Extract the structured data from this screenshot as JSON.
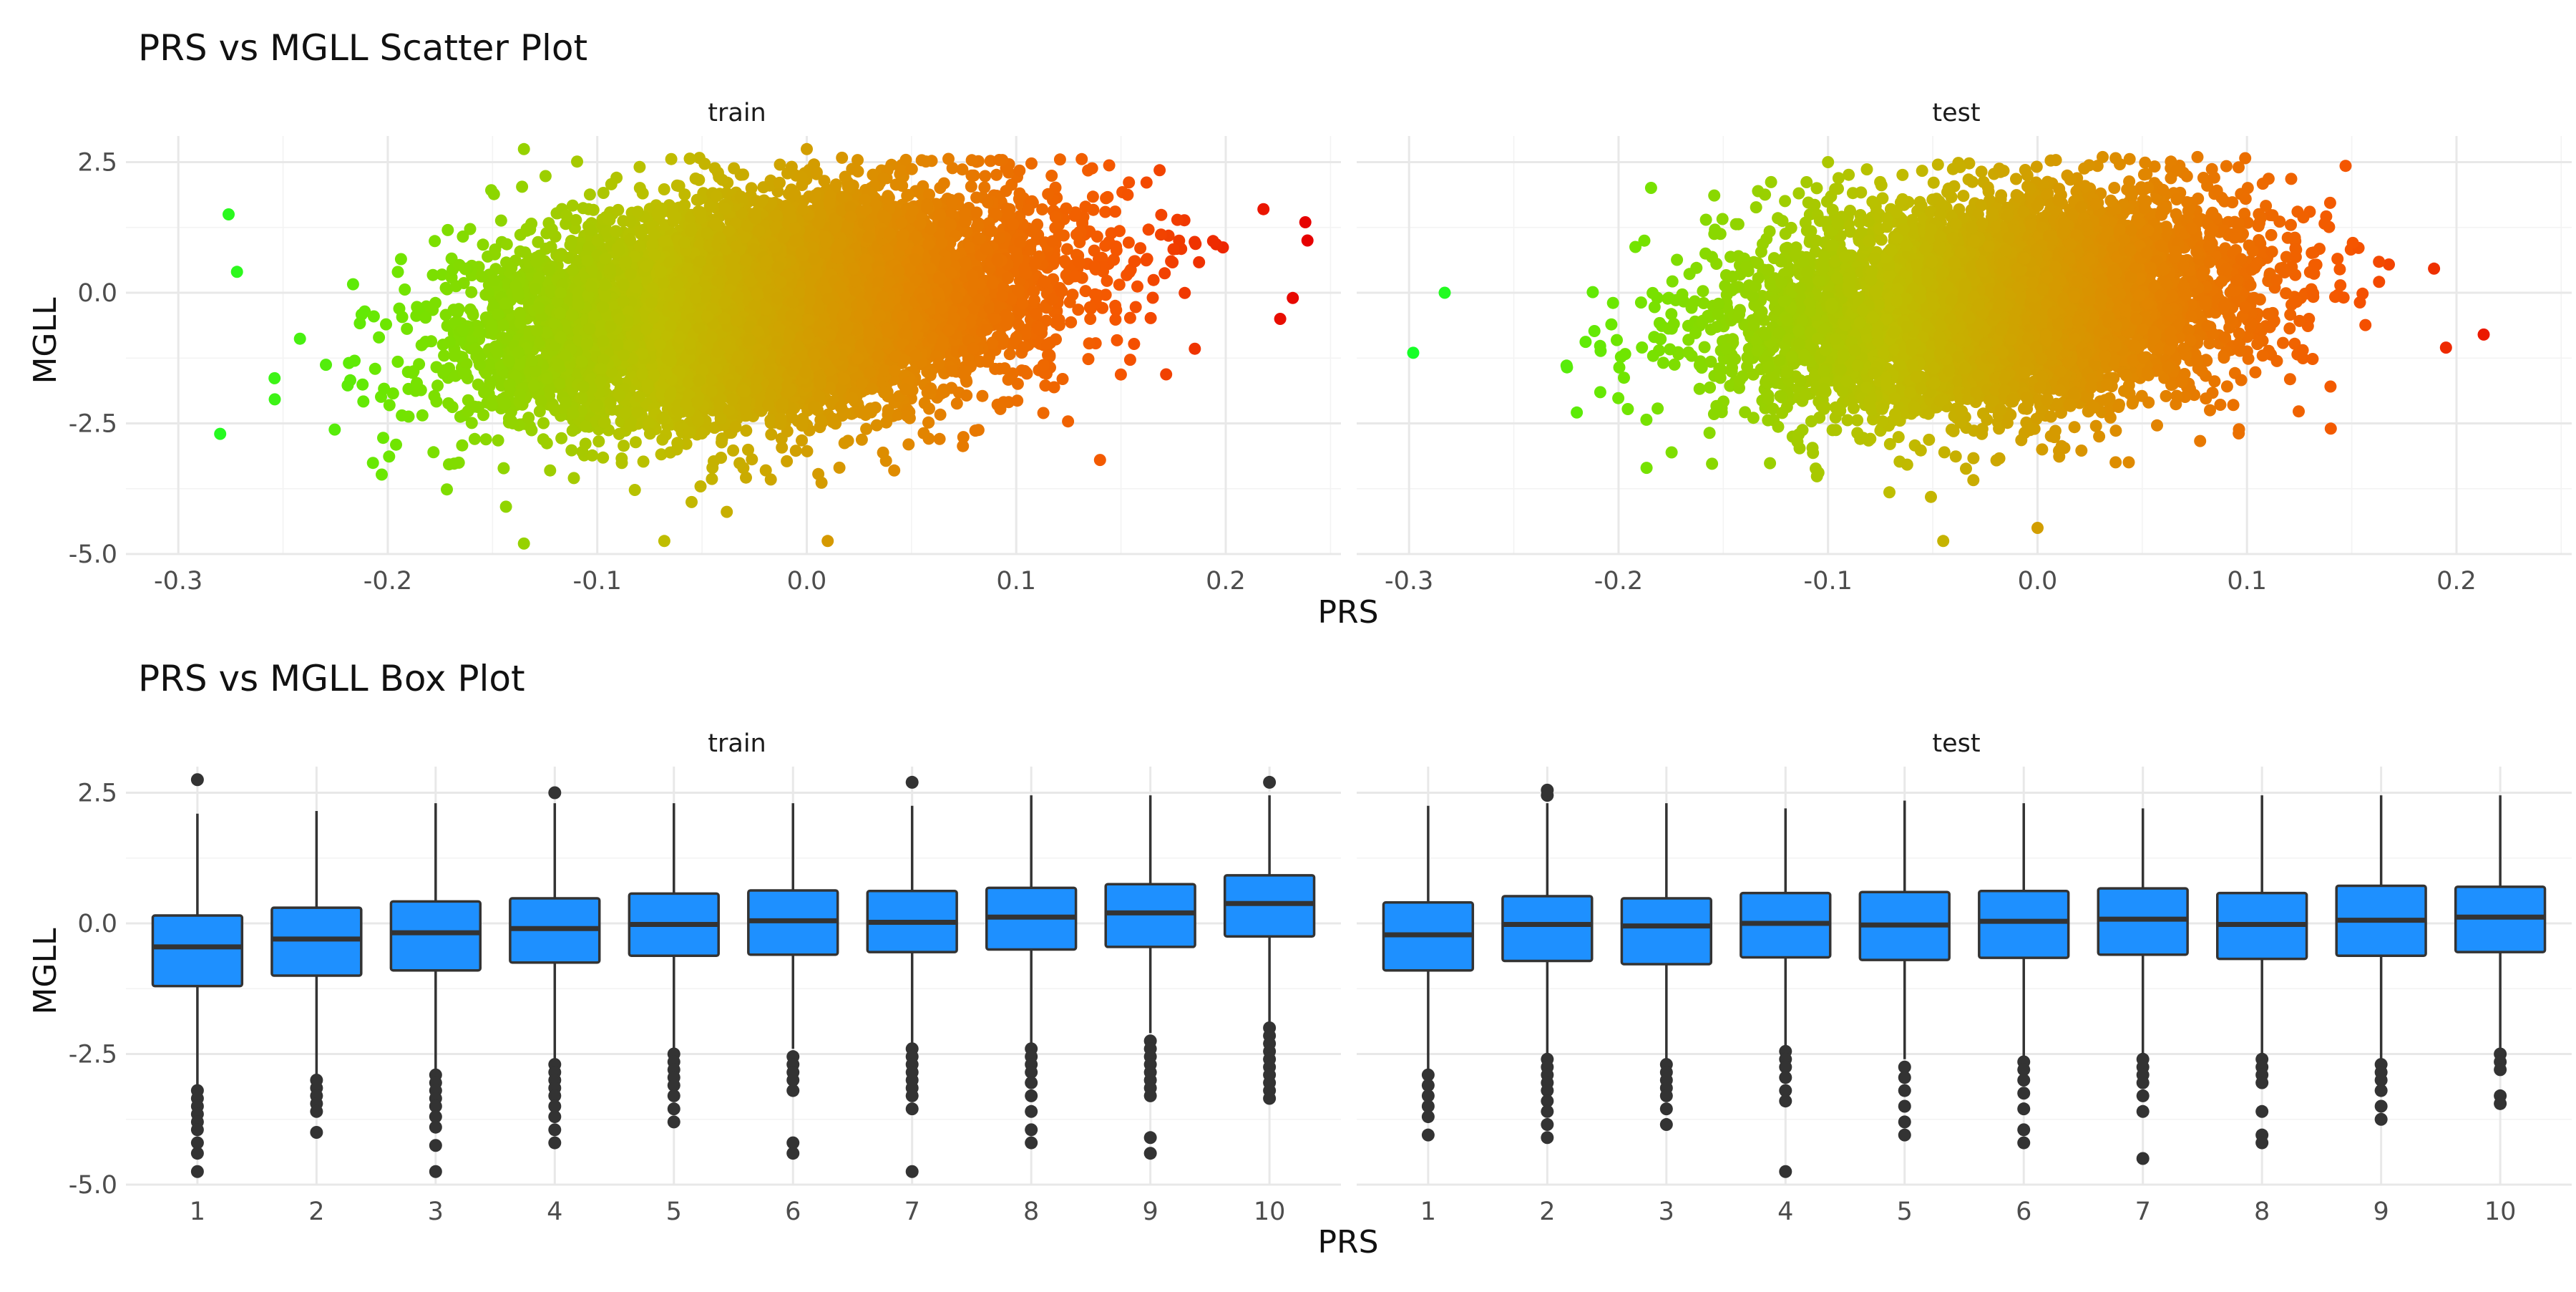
{
  "chart_data": [
    {
      "type": "scatter",
      "title": "PRS vs MGLL Scatter Plot",
      "xlabel": "PRS",
      "ylabel": "MGLL",
      "panels": [
        {
          "label": "train",
          "xlim": [
            -0.325,
            0.255
          ],
          "ylim": [
            -5.0,
            3.0
          ],
          "xticks": [
            -0.3,
            -0.2,
            -0.1,
            0.0,
            0.1,
            0.2
          ],
          "xtick_labels": [
            "-0.3",
            "-0.2",
            "-0.1",
            "0.0",
            "0.1",
            "0.2"
          ],
          "yticks": [
            -5.0,
            -2.5,
            0.0,
            2.5
          ],
          "ytick_labels": [
            "-5.0",
            "-2.5",
            "0.0",
            "2.5"
          ],
          "point_cloud": {
            "n_points": 9000,
            "x_mean": -0.02,
            "x_sd": 0.065,
            "y_intercept": -0.2,
            "y_slope": 4.5,
            "y_sd": 1.0,
            "seed": 11
          },
          "outliers": [
            {
              "x": 0.238,
              "y": 1.35
            },
            {
              "x": 0.239,
              "y": 1.0
            },
            {
              "x": 0.232,
              "y": -0.1
            },
            {
              "x": 0.226,
              "y": -0.5
            },
            {
              "x": 0.218,
              "y": 1.6
            },
            {
              "x": -0.276,
              "y": 1.5
            },
            {
              "x": -0.28,
              "y": -2.7
            },
            {
              "x": -0.272,
              "y": 0.4
            },
            {
              "x": -0.135,
              "y": 2.75
            },
            {
              "x": 0.0,
              "y": 2.75
            },
            {
              "x": -0.135,
              "y": -4.8
            },
            {
              "x": -0.068,
              "y": -4.75
            },
            {
              "x": 0.01,
              "y": -4.75
            },
            {
              "x": 0.14,
              "y": -3.2
            }
          ]
        },
        {
          "label": "test",
          "xlim": [
            -0.325,
            0.255
          ],
          "ylim": [
            -5.0,
            3.0
          ],
          "xticks": [
            -0.3,
            -0.2,
            -0.1,
            0.0,
            0.1,
            0.2
          ],
          "xtick_labels": [
            "-0.3",
            "-0.2",
            "-0.1",
            "0.0",
            "0.1",
            "0.2"
          ],
          "yticks": [
            -5.0,
            -2.5,
            0.0,
            2.5
          ],
          "ytick_labels": [
            "-5.0",
            "-2.5",
            "0.0",
            "2.5"
          ],
          "point_cloud": {
            "n_points": 6000,
            "x_mean": -0.02,
            "x_sd": 0.06,
            "y_intercept": -0.2,
            "y_slope": 3.5,
            "y_sd": 1.0,
            "seed": 23
          },
          "outliers": [
            {
              "x": -0.298,
              "y": -1.15
            },
            {
              "x": -0.283,
              "y": 0.0
            },
            {
              "x": 0.213,
              "y": -0.8
            },
            {
              "x": 0.195,
              "y": -1.05
            },
            {
              "x": -0.045,
              "y": -4.75
            },
            {
              "x": 0.0,
              "y": -4.5
            },
            {
              "x": -0.1,
              "y": 2.5
            },
            {
              "x": 0.096,
              "y": 2.4
            },
            {
              "x": 0.14,
              "y": -2.6
            }
          ]
        }
      ]
    },
    {
      "type": "box",
      "title": "PRS vs MGLL Box Plot",
      "xlabel": "PRS",
      "ylabel": "MGLL",
      "panels": [
        {
          "label": "train",
          "categories": [
            "1",
            "2",
            "3",
            "4",
            "5",
            "6",
            "7",
            "8",
            "9",
            "10"
          ],
          "ylim": [
            -5.0,
            3.0
          ],
          "yticks": [
            -5.0,
            -2.5,
            0.0,
            2.5
          ],
          "ytick_labels": [
            "-5.0",
            "-2.5",
            "0.0",
            "2.5"
          ],
          "boxes": [
            {
              "q1": -1.2,
              "median": -0.45,
              "q3": 0.15,
              "lower": -3.1,
              "upper": 2.1,
              "outliers": [
                2.75,
                -3.2,
                -3.35,
                -3.5,
                -3.65,
                -3.8,
                -3.95,
                -4.2,
                -4.4,
                -4.75
              ]
            },
            {
              "q1": -1.0,
              "median": -0.3,
              "q3": 0.3,
              "lower": -2.9,
              "upper": 2.15,
              "outliers": [
                -3.0,
                -3.15,
                -3.3,
                -3.45,
                -3.6,
                -4.0
              ]
            },
            {
              "q1": -0.9,
              "median": -0.18,
              "q3": 0.42,
              "lower": -2.8,
              "upper": 2.3,
              "outliers": [
                -2.9,
                -3.05,
                -3.2,
                -3.35,
                -3.5,
                -3.7,
                -3.9,
                -4.25,
                -4.75
              ]
            },
            {
              "q1": -0.75,
              "median": -0.1,
              "q3": 0.48,
              "lower": -2.6,
              "upper": 2.3,
              "outliers": [
                2.5,
                -2.7,
                -2.85,
                -3.0,
                -3.15,
                -3.3,
                -3.5,
                -3.7,
                -3.95,
                -4.2
              ]
            },
            {
              "q1": -0.62,
              "median": -0.02,
              "q3": 0.57,
              "lower": -2.4,
              "upper": 2.3,
              "outliers": [
                -2.5,
                -2.65,
                -2.8,
                -2.95,
                -3.1,
                -3.3,
                -3.55,
                -3.8
              ]
            },
            {
              "q1": -0.6,
              "median": 0.05,
              "q3": 0.63,
              "lower": -2.4,
              "upper": 2.3,
              "outliers": [
                -2.55,
                -2.7,
                -2.85,
                -3.0,
                -3.2,
                -4.2,
                -4.4
              ]
            },
            {
              "q1": -0.55,
              "median": 0.02,
              "q3": 0.62,
              "lower": -2.3,
              "upper": 2.25,
              "outliers": [
                2.7,
                -2.4,
                -2.55,
                -2.7,
                -2.85,
                -3.0,
                -3.15,
                -3.3,
                -3.55,
                -4.75
              ]
            },
            {
              "q1": -0.5,
              "median": 0.12,
              "q3": 0.68,
              "lower": -2.3,
              "upper": 2.45,
              "outliers": [
                -2.4,
                -2.55,
                -2.7,
                -2.85,
                -3.05,
                -3.3,
                -3.6,
                -3.95,
                -4.2
              ]
            },
            {
              "q1": -0.45,
              "median": 0.2,
              "q3": 0.75,
              "lower": -2.1,
              "upper": 2.45,
              "outliers": [
                -2.25,
                -2.4,
                -2.55,
                -2.7,
                -2.85,
                -3.0,
                -3.15,
                -3.3,
                -4.1,
                -4.4
              ]
            },
            {
              "q1": -0.25,
              "median": 0.38,
              "q3": 0.92,
              "lower": -1.9,
              "upper": 2.45,
              "outliers": [
                2.7,
                -2.0,
                -2.15,
                -2.3,
                -2.45,
                -2.6,
                -2.75,
                -2.9,
                -3.05,
                -3.2,
                -3.35
              ]
            }
          ]
        },
        {
          "label": "test",
          "categories": [
            "1",
            "2",
            "3",
            "4",
            "5",
            "6",
            "7",
            "8",
            "9",
            "10"
          ],
          "ylim": [
            -5.0,
            3.0
          ],
          "yticks": [
            -5.0,
            -2.5,
            0.0,
            2.5
          ],
          "ytick_labels": [
            "-5.0",
            "-2.5",
            "0.0",
            "2.5"
          ],
          "boxes": [
            {
              "q1": -0.9,
              "median": -0.22,
              "q3": 0.4,
              "lower": -2.8,
              "upper": 2.25,
              "outliers": [
                -2.9,
                -3.1,
                -3.3,
                -3.5,
                -3.7,
                -4.05
              ]
            },
            {
              "q1": -0.72,
              "median": -0.02,
              "q3": 0.52,
              "lower": -2.5,
              "upper": 2.3,
              "outliers": [
                2.45,
                2.55,
                -2.6,
                -2.75,
                -2.9,
                -3.05,
                -3.2,
                -3.4,
                -3.6,
                -3.85,
                -4.1
              ]
            },
            {
              "q1": -0.78,
              "median": -0.05,
              "q3": 0.48,
              "lower": -2.6,
              "upper": 2.3,
              "outliers": [
                -2.7,
                -2.85,
                -3.0,
                -3.15,
                -3.3,
                -3.55,
                -3.85
              ]
            },
            {
              "q1": -0.65,
              "median": 0.0,
              "q3": 0.58,
              "lower": -2.35,
              "upper": 2.2,
              "outliers": [
                -2.45,
                -2.6,
                -2.75,
                -2.95,
                -3.2,
                -3.4,
                -4.75
              ]
            },
            {
              "q1": -0.7,
              "median": -0.03,
              "q3": 0.6,
              "lower": -2.6,
              "upper": 2.35,
              "outliers": [
                -2.75,
                -2.95,
                -3.2,
                -3.5,
                -3.8,
                -4.05
              ]
            },
            {
              "q1": -0.66,
              "median": 0.04,
              "q3": 0.62,
              "lower": -2.55,
              "upper": 2.3,
              "outliers": [
                -2.65,
                -2.8,
                -3.0,
                -3.25,
                -3.55,
                -3.95,
                -4.2
              ]
            },
            {
              "q1": -0.6,
              "median": 0.08,
              "q3": 0.67,
              "lower": -2.5,
              "upper": 2.2,
              "outliers": [
                -2.6,
                -2.75,
                -2.9,
                -3.05,
                -3.3,
                -3.6,
                -4.5
              ]
            },
            {
              "q1": -0.68,
              "median": -0.02,
              "q3": 0.58,
              "lower": -2.5,
              "upper": 2.45,
              "outliers": [
                -2.6,
                -2.75,
                -2.9,
                -3.05,
                -3.6,
                -4.05,
                -4.2
              ]
            },
            {
              "q1": -0.62,
              "median": 0.06,
              "q3": 0.72,
              "lower": -2.6,
              "upper": 2.45,
              "outliers": [
                -2.7,
                -2.85,
                -3.0,
                -3.2,
                -3.5,
                -3.75
              ]
            },
            {
              "q1": -0.55,
              "median": 0.12,
              "q3": 0.7,
              "lower": -2.4,
              "upper": 2.45,
              "outliers": [
                -2.5,
                -2.65,
                -2.8,
                -3.3,
                -3.45
              ]
            }
          ]
        }
      ]
    }
  ]
}
